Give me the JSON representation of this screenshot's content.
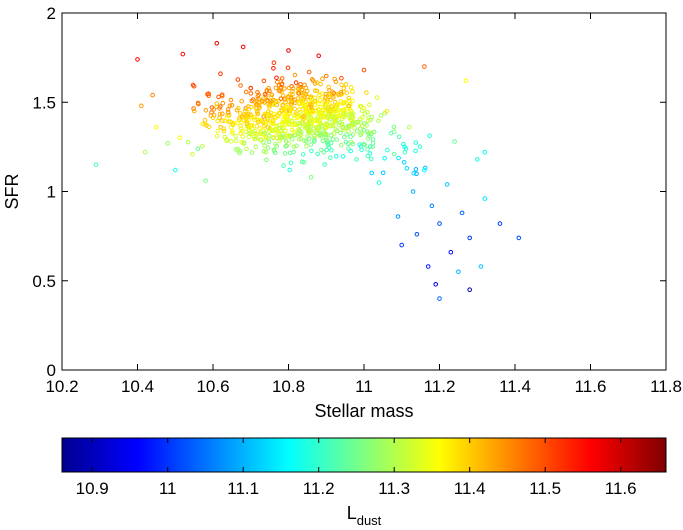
{
  "chart_data": {
    "type": "scatter",
    "title": "",
    "xlabel": "Stellar mass",
    "ylabel": "SFR",
    "xlim": [
      10.2,
      11.8
    ],
    "ylim": [
      0,
      2
    ],
    "xticks": [
      "10.2",
      "10.4",
      "10.6",
      "10.8",
      "11",
      "11.2",
      "11.4",
      "11.6",
      "11.8"
    ],
    "yticks": [
      "0",
      "0.5",
      "1",
      "1.5",
      "2"
    ],
    "grid": false,
    "marker": "open-circle",
    "colorbar": {
      "label_main": "L",
      "label_sub": "dust",
      "range": [
        10.86,
        11.66
      ],
      "ticks": [
        "10.9",
        "11",
        "11.1",
        "11.2",
        "11.3",
        "11.4",
        "11.5",
        "11.6"
      ],
      "colormap": "jet",
      "orientation": "horizontal",
      "placement": "bottom"
    },
    "n_points": 900,
    "points_note": "dense cloud of ~900 galaxies; sample listed, remainder summarized by distribution",
    "points": [
      [
        10.29,
        1.15,
        11.22
      ],
      [
        10.4,
        1.74,
        11.56
      ],
      [
        10.41,
        1.48,
        11.44
      ],
      [
        10.42,
        1.22,
        11.3
      ],
      [
        10.44,
        1.54,
        11.46
      ],
      [
        10.45,
        1.36,
        11.36
      ],
      [
        10.48,
        1.27,
        11.28
      ],
      [
        10.5,
        1.12,
        11.18
      ],
      [
        10.52,
        1.77,
        11.56
      ],
      [
        10.55,
        1.59,
        11.5
      ],
      [
        10.56,
        1.24,
        11.24
      ],
      [
        10.58,
        1.06,
        11.26
      ],
      [
        10.61,
        1.83,
        11.58
      ],
      [
        10.62,
        1.66,
        11.52
      ],
      [
        10.64,
        1.46,
        11.44
      ],
      [
        10.66,
        1.31,
        11.32
      ],
      [
        10.68,
        1.81,
        11.56
      ],
      [
        10.7,
        1.58,
        11.5
      ],
      [
        10.72,
        1.39,
        11.4
      ],
      [
        10.74,
        1.22,
        11.3
      ],
      [
        10.76,
        1.69,
        11.54
      ],
      [
        10.78,
        1.52,
        11.48
      ],
      [
        10.8,
        1.79,
        11.58
      ],
      [
        10.8,
        1.27,
        11.3
      ],
      [
        10.82,
        1.61,
        11.52
      ],
      [
        10.84,
        1.42,
        11.42
      ],
      [
        10.86,
        1.08,
        11.26
      ],
      [
        10.88,
        1.76,
        11.56
      ],
      [
        10.9,
        1.36,
        11.36
      ],
      [
        10.92,
        1.55,
        11.46
      ],
      [
        10.94,
        1.26,
        11.28
      ],
      [
        10.96,
        1.48,
        11.42
      ],
      [
        10.98,
        1.18,
        11.22
      ],
      [
        11.0,
        1.68,
        11.5
      ],
      [
        11.02,
        1.33,
        11.32
      ],
      [
        11.04,
        1.05,
        11.18
      ],
      [
        11.06,
        1.45,
        11.38
      ],
      [
        11.08,
        1.21,
        11.24
      ],
      [
        11.09,
        0.86,
        11.08
      ],
      [
        11.1,
        0.7,
        11.0
      ],
      [
        11.12,
        1.36,
        11.3
      ],
      [
        11.13,
        1.0,
        11.1
      ],
      [
        11.14,
        0.76,
        11.02
      ],
      [
        11.16,
        1.7,
        11.48
      ],
      [
        11.16,
        1.12,
        11.16
      ],
      [
        11.17,
        0.58,
        10.98
      ],
      [
        11.18,
        0.92,
        11.06
      ],
      [
        11.19,
        0.48,
        10.94
      ],
      [
        11.2,
        0.4,
        11.04
      ],
      [
        11.2,
        0.82,
        11.02
      ],
      [
        11.22,
        1.04,
        11.12
      ],
      [
        11.23,
        0.66,
        10.96
      ],
      [
        11.24,
        1.28,
        11.24
      ],
      [
        11.25,
        0.55,
        11.1
      ],
      [
        11.26,
        0.88,
        11.04
      ],
      [
        11.27,
        1.62,
        11.36
      ],
      [
        11.28,
        0.45,
        10.9
      ],
      [
        11.28,
        0.74,
        11.0
      ],
      [
        11.3,
        1.18,
        11.18
      ],
      [
        11.31,
        0.58,
        11.12
      ],
      [
        11.32,
        0.96,
        11.14
      ],
      [
        11.32,
        1.22,
        11.16
      ],
      [
        11.36,
        0.82,
        11.0
      ],
      [
        11.41,
        0.74,
        11.02
      ]
    ]
  }
}
